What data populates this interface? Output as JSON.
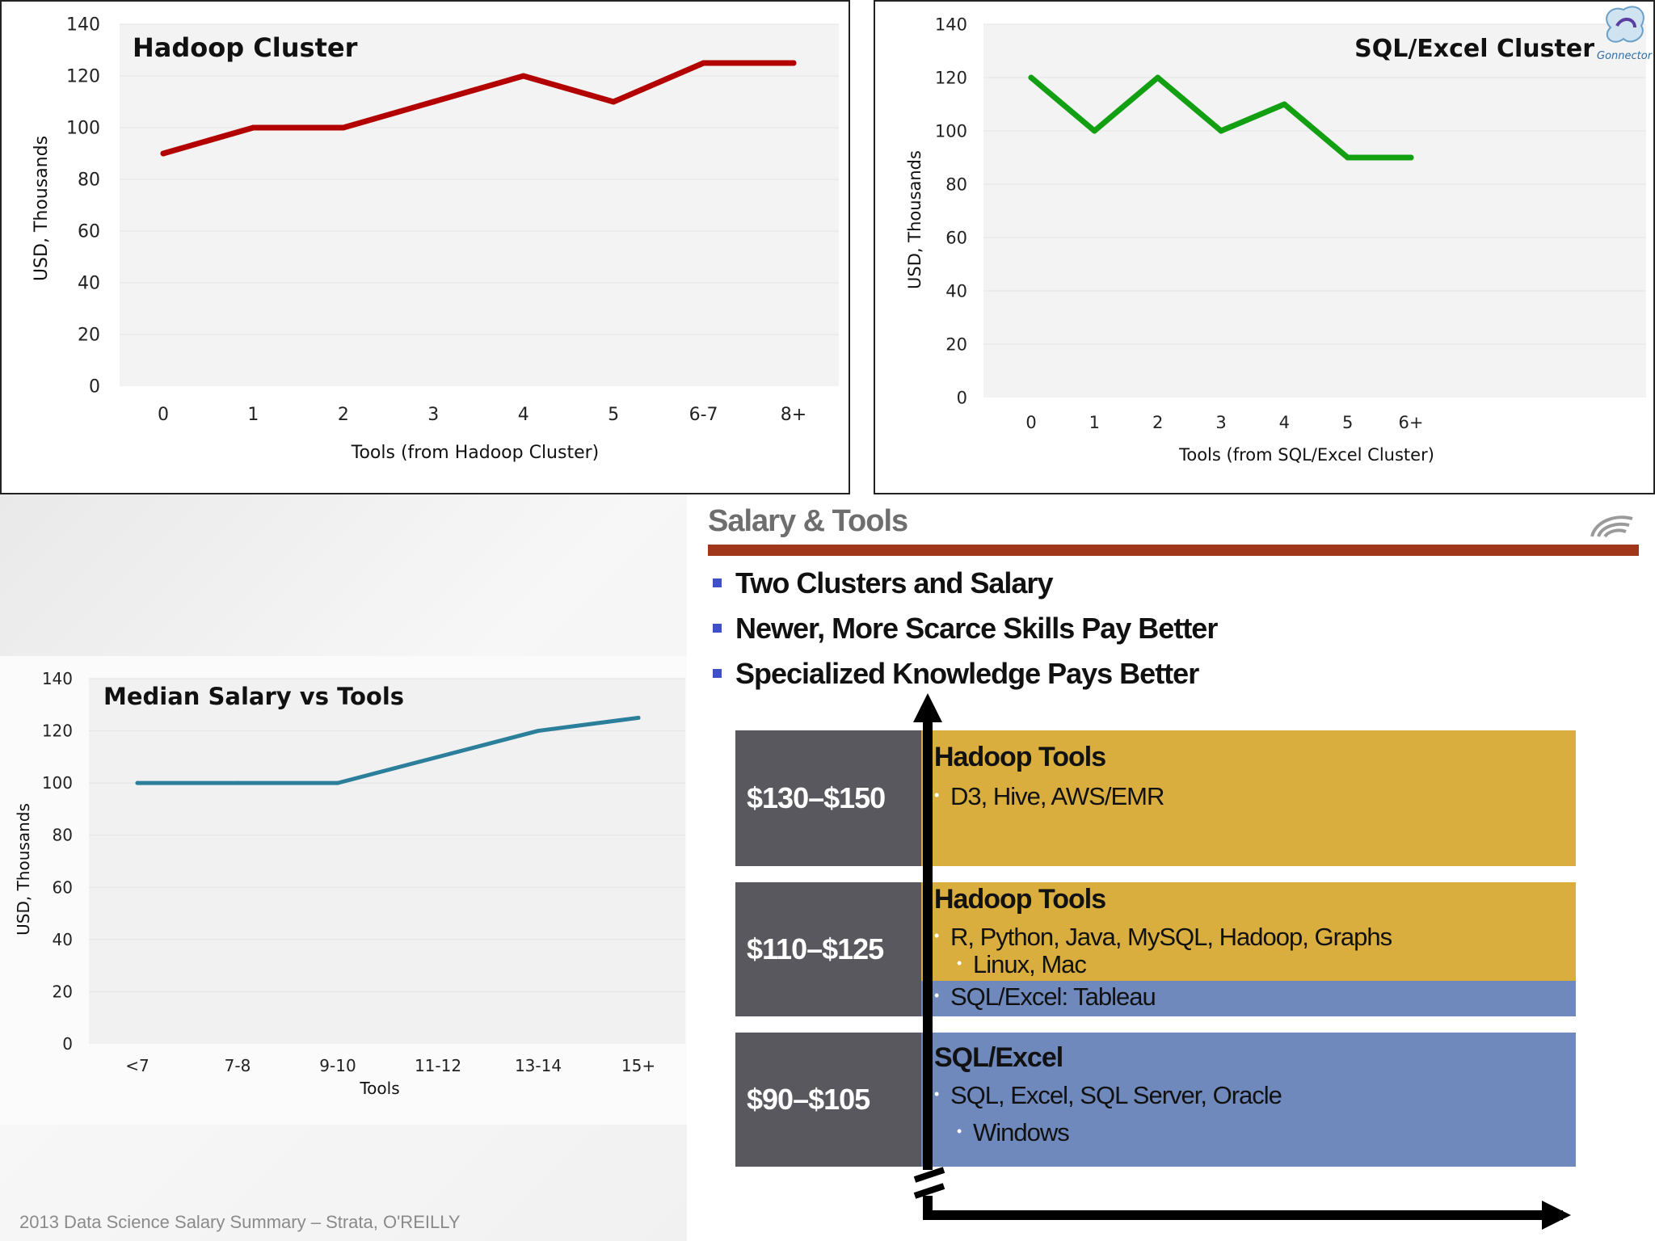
{
  "hadoop": {
    "title": "Hadoop Cluster",
    "ylabel": "USD, Thousands",
    "xlabel": "Tools (from Hadoop Cluster)"
  },
  "sql": {
    "title": "SQL/Excel Cluster",
    "ylabel": "USD, Thousands",
    "xlabel": "Tools (from SQL/Excel Cluster)",
    "logo_text": "Gonnector"
  },
  "median": {
    "title": "Median Salary vs Tools",
    "ylabel": "USD, Thousands",
    "xlabel": "Tools"
  },
  "footer": {
    "source": "2013 Data Science Salary Summary – Strata, O'REILLY"
  },
  "slide": {
    "title": "Salary & Tools",
    "bullets": [
      "Two Clusters and Salary",
      "Newer, More Scarce Skills Pay Better",
      "Specialized Knowledge Pays Better"
    ],
    "tiers": [
      {
        "price": "$130–$150",
        "head": "Hadoop Tools",
        "items": [
          "D3, Hive, AWS/EMR"
        ]
      },
      {
        "price": "$110–$125",
        "head": "Hadoop Tools",
        "items": [
          "R, Python, Java, MySQL, Hadoop, Graphs",
          "Linux, Mac",
          "SQL/Excel: Tableau"
        ]
      },
      {
        "price": "$90–$105",
        "head": "SQL/Excel",
        "items": [
          "SQL, Excel, SQL Server, Oracle",
          "Windows"
        ]
      }
    ],
    "colors": {
      "gold": "#d9ae3e",
      "blue": "#6f89bd",
      "price_bg": "#58585e",
      "rule": "#a0361a"
    }
  },
  "chart_data": [
    {
      "type": "line",
      "title": "Hadoop Cluster",
      "xlabel": "Tools (from Hadoop Cluster)",
      "ylabel": "USD, Thousands",
      "categories": [
        "0",
        "1",
        "2",
        "3",
        "4",
        "5",
        "6-7",
        "8+"
      ],
      "series": [
        {
          "values": [
            90,
            100,
            100,
            110,
            120,
            110,
            125,
            125
          ],
          "color": "#b30000"
        }
      ],
      "ylim": [
        0,
        140
      ],
      "yticks": [
        0,
        20,
        40,
        60,
        80,
        100,
        120,
        140
      ],
      "grid": true
    },
    {
      "type": "line",
      "title": "SQL/Excel Cluster",
      "xlabel": "Tools (from SQL/Excel Cluster)",
      "ylabel": "USD, Thousands",
      "categories": [
        "0",
        "1",
        "2",
        "3",
        "4",
        "5",
        "6+"
      ],
      "series": [
        {
          "values": [
            120,
            100,
            120,
            100,
            110,
            90,
            90
          ],
          "color": "#12a012"
        }
      ],
      "ylim": [
        0,
        140
      ],
      "yticks": [
        0,
        20,
        40,
        60,
        80,
        100,
        120,
        140
      ],
      "grid": true
    },
    {
      "type": "line",
      "title": "Median Salary vs Tools",
      "xlabel": "Tools",
      "ylabel": "USD, Thousands",
      "categories": [
        "<7",
        "7-8",
        "9-10",
        "11-12",
        "13-14",
        "15+"
      ],
      "series": [
        {
          "values": [
            100,
            100,
            100,
            110,
            120,
            125
          ],
          "color": "#2c7f9a"
        }
      ],
      "ylim": [
        0,
        140
      ],
      "yticks": [
        0,
        20,
        40,
        60,
        80,
        100,
        120,
        140
      ],
      "grid": true
    }
  ]
}
